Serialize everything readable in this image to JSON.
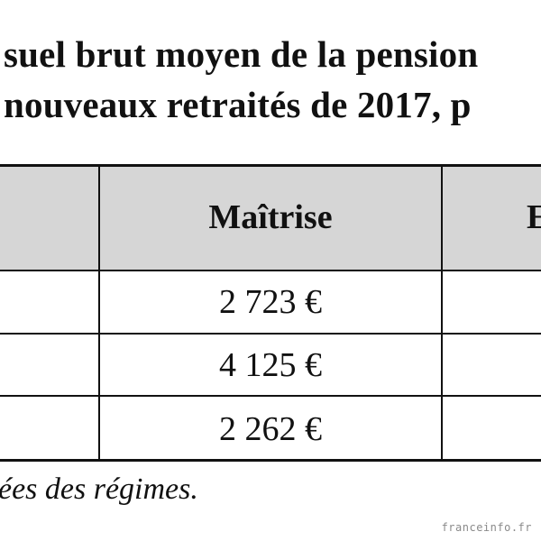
{
  "title": {
    "line1": "suel brut moyen de la pension",
    "line2": "nouveaux retraités de 2017, p"
  },
  "table": {
    "header": [
      "",
      "Maîtrise",
      "E"
    ],
    "rows": [
      [
        "",
        "2 723 €",
        ""
      ],
      [
        "",
        "4 125 €",
        ""
      ],
      [
        "",
        "2 262 €",
        ""
      ]
    ]
  },
  "source": "ées des régimes.",
  "watermark": "franceinfo.fr",
  "colors": {
    "header_bg": "#d6d6d6",
    "border": "#111111",
    "text": "#111111",
    "watermark": "#8a8a8a"
  }
}
